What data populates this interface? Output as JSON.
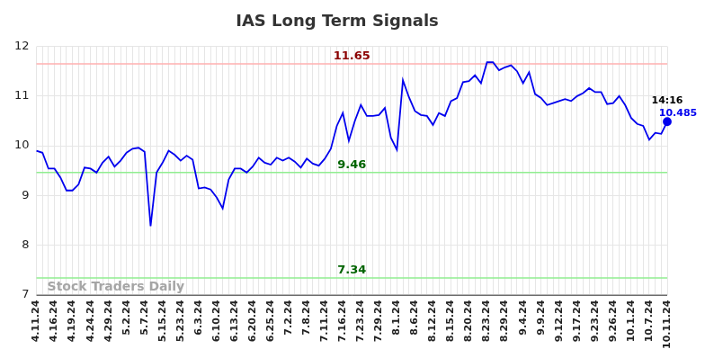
{
  "chart_data": {
    "type": "line",
    "title": "IAS Long Term Signals",
    "categories": [
      "4.11.24",
      null,
      null,
      "4.16.24",
      null,
      null,
      "4.19.24",
      null,
      null,
      "4.24.24",
      null,
      null,
      "4.29.24",
      null,
      null,
      "5.2.24",
      null,
      null,
      "5.7.24",
      null,
      null,
      "5.15.24",
      null,
      null,
      "5.23.24",
      null,
      null,
      "6.3.24",
      null,
      null,
      "6.10.24",
      null,
      null,
      "6.13.24",
      null,
      null,
      "6.20.24",
      null,
      null,
      "6.25.24",
      null,
      null,
      "7.2.24",
      null,
      null,
      "7.8.24",
      null,
      null,
      "7.11.24",
      null,
      null,
      "7.16.24",
      null,
      null,
      "7.23.24",
      null,
      null,
      "7.29.24",
      null,
      null,
      "8.1.24",
      null,
      null,
      "8.6.24",
      null,
      null,
      "8.12.24",
      null,
      null,
      "8.15.24",
      null,
      null,
      "8.20.24",
      null,
      null,
      "8.23.24",
      null,
      null,
      "8.29.24",
      null,
      null,
      "9.4.24",
      null,
      null,
      "9.9.24",
      null,
      null,
      "9.12.24",
      null,
      null,
      "9.17.24",
      null,
      null,
      "9.23.24",
      null,
      null,
      "9.26.24",
      null,
      null,
      "10.1.24",
      null,
      null,
      "10.7.24",
      null,
      null,
      "10.11.24"
    ],
    "values": [
      9.9,
      9.86,
      9.54,
      9.54,
      9.36,
      9.1,
      9.1,
      9.22,
      9.56,
      9.54,
      9.46,
      9.66,
      9.78,
      9.58,
      9.7,
      9.86,
      9.94,
      9.96,
      9.88,
      8.38,
      9.46,
      9.66,
      9.9,
      9.82,
      9.7,
      9.8,
      9.72,
      9.14,
      9.16,
      9.12,
      8.96,
      8.74,
      9.32,
      9.54,
      9.54,
      9.46,
      9.58,
      9.76,
      9.66,
      9.62,
      9.76,
      9.7,
      9.76,
      9.68,
      9.56,
      9.74,
      9.64,
      9.6,
      9.74,
      9.94,
      10.4,
      10.66,
      10.1,
      10.5,
      10.82,
      10.6,
      10.6,
      10.62,
      10.76,
      10.16,
      9.92,
      11.32,
      10.98,
      10.7,
      10.62,
      10.6,
      10.42,
      10.66,
      10.6,
      10.9,
      10.96,
      11.28,
      11.3,
      11.42,
      11.26,
      11.68,
      11.68,
      11.52,
      11.58,
      11.62,
      11.5,
      11.26,
      11.48,
      11.04,
      10.96,
      10.82,
      10.86,
      10.9,
      10.94,
      10.9,
      11.0,
      11.06,
      11.16,
      11.08,
      11.08,
      10.84,
      10.86,
      11.0,
      10.82,
      10.56,
      10.44,
      10.4,
      10.12,
      10.26,
      10.24,
      10.485
    ],
    "color": "#0000ee",
    "ylim": [
      7,
      12
    ],
    "yticks": [
      7,
      8,
      9,
      10,
      11,
      12
    ],
    "grid": true,
    "reference_lines": [
      {
        "value": 11.65,
        "label": "11.65",
        "color": "#ffb0b0",
        "label_color": "#8b0000"
      },
      {
        "value": 9.46,
        "label": "9.46",
        "color": "#90ee90",
        "label_color": "#006400"
      },
      {
        "value": 7.34,
        "label": "7.34",
        "color": "#90ee90",
        "label_color": "#006400"
      }
    ],
    "last_point": {
      "time": "14:16",
      "label": "10.485"
    },
    "watermark": "Stock Traders Daily"
  }
}
